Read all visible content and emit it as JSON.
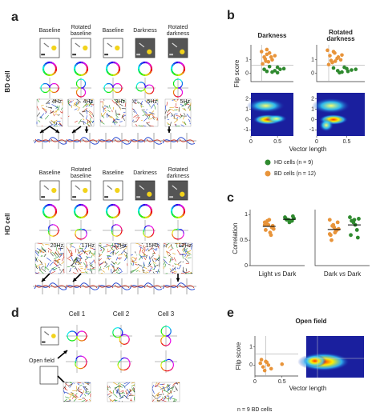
{
  "panel_a": {
    "label": "a",
    "bd": {
      "row_label": "BD cell",
      "columns": [
        "Baseline",
        "Rotated baseline",
        "Baseline",
        "Darkness",
        "Rotated darkness"
      ],
      "rates": [
        "4Hz",
        "4Hz",
        "3Hz",
        "5Hz",
        "5Hz"
      ]
    },
    "hd": {
      "row_label": "HD cell",
      "columns": [
        "Baseline",
        "Rotated baseline",
        "Baseline",
        "Darkness",
        "Rotated darkness"
      ],
      "rates": [
        "20Hz",
        "17Hz",
        "12Hz",
        "15Hz",
        "12Hz"
      ]
    }
  },
  "panel_b": {
    "label": "b",
    "y_label": "Flip score",
    "x_label": "Vector length",
    "xlim": [
      0,
      0.8
    ],
    "xticks": [
      0,
      0.5
    ],
    "scatter_ylim": [
      -0.6,
      2.1
    ],
    "scatter_yticks": [
      0,
      1
    ],
    "heat_ylim": [
      -1.6,
      2.6
    ],
    "heat_yticks": [
      -1,
      0,
      1,
      2
    ],
    "thresholds": {
      "x": 0.2,
      "y": 0.6
    },
    "plots": [
      {
        "title": "Darkness",
        "hd": {
          "x": [
            0.25,
            0.3,
            0.4,
            0.5,
            0.55,
            0.45,
            0.62,
            0.35,
            0.5
          ],
          "y": [
            0.3,
            0.15,
            0.1,
            0.45,
            0.3,
            0.2,
            0.35,
            0.5,
            0.05
          ]
        },
        "bd": {
          "x": [
            0.2,
            0.25,
            0.3,
            0.28,
            0.35,
            0.4,
            0.22,
            0.45,
            0.3,
            0.38,
            0.27,
            0.33
          ],
          "y": [
            1.6,
            1.2,
            1.4,
            0.9,
            1.5,
            1.0,
            0.7,
            1.3,
            1.75,
            1.2,
            1.05,
            0.85
          ]
        }
      },
      {
        "title": "Rotated darkness",
        "hd": {
          "x": [
            0.28,
            0.35,
            0.42,
            0.5,
            0.58,
            0.46,
            0.65,
            0.38,
            0.52
          ],
          "y": [
            0.4,
            0.2,
            0.1,
            0.35,
            0.25,
            0.45,
            0.3,
            0.05,
            0.15
          ]
        },
        "bd": {
          "x": [
            0.18,
            0.22,
            0.3,
            0.26,
            0.34,
            0.4,
            0.2,
            0.42,
            0.28,
            0.36,
            0.24,
            0.31
          ],
          "y": [
            1.7,
            1.3,
            1.5,
            0.8,
            1.1,
            1.0,
            0.65,
            1.35,
            1.6,
            1.2,
            0.95,
            0.9
          ]
        }
      }
    ],
    "legend": [
      {
        "name": "HD cells (n = 9)",
        "color": "#2f8a2f"
      },
      {
        "name": "BD cells (n = 12)",
        "color": "#e8943a"
      }
    ]
  },
  "panel_c": {
    "label": "c",
    "y_label": "Correlation",
    "ylim": [
      0,
      1.1
    ],
    "yticks": [
      0,
      0.5,
      1
    ],
    "groups": [
      {
        "label": [
          "Light",
          "vs",
          "Dark"
        ],
        "bd": [
          0.85,
          0.8,
          0.75,
          0.7,
          0.9,
          0.78,
          0.82,
          0.65,
          0.72,
          0.88,
          0.6,
          0.8
        ],
        "hd": [
          0.95,
          0.9,
          0.88,
          0.92,
          0.85,
          0.97,
          0.9,
          0.87,
          0.93
        ],
        "bd_mean": 0.77,
        "hd_mean": 0.91
      },
      {
        "label": [
          "Dark",
          "vs",
          "Dark"
        ],
        "bd": [
          0.9,
          0.8,
          0.7,
          0.6,
          0.75,
          0.85,
          0.5,
          0.65,
          0.72,
          0.78,
          0.68,
          0.62
        ],
        "hd": [
          0.95,
          0.85,
          0.7,
          0.6,
          0.9,
          0.55,
          0.88,
          0.8,
          0.92
        ],
        "bd_mean": 0.71,
        "hd_mean": 0.8
      }
    ]
  },
  "panel_d": {
    "label": "d",
    "cells": [
      "Cell 1",
      "Cell 2",
      "Cell 3"
    ],
    "condition": "Open field"
  },
  "panel_e": {
    "label": "e",
    "title": "Open field",
    "y_label": "Flip score",
    "x_label": "Vector length",
    "xlim": [
      0,
      0.8
    ],
    "xticks": [
      0,
      0.5
    ],
    "ylim": [
      -0.6,
      1.6
    ],
    "yticks": [
      0,
      1
    ],
    "thresholds": {
      "x": 0.2,
      "y": 0.6
    },
    "bd": {
      "x": [
        0.1,
        0.15,
        0.2,
        0.12,
        0.25,
        0.3,
        0.18,
        0.5,
        0.22
      ],
      "y": [
        0.1,
        -0.1,
        0.2,
        0.3,
        0.0,
        -0.2,
        -0.3,
        0.05,
        0.15
      ]
    },
    "note": "n = 9 BD cells"
  }
}
